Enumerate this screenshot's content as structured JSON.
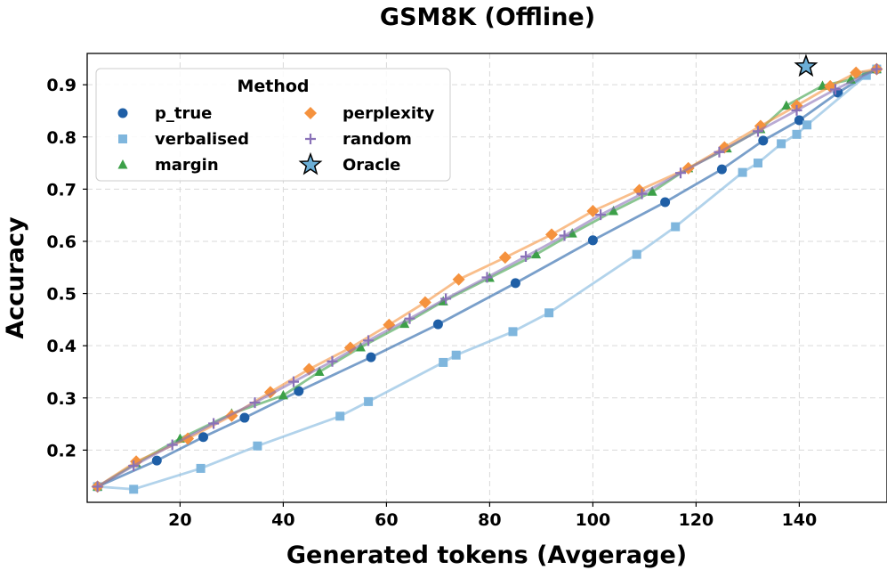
{
  "chart_data": {
    "type": "line",
    "title": "GSM8K (Offline)",
    "xlabel": "Generated tokens (Avgerage)",
    "ylabel": "Accuracy",
    "xlim": [
      2,
      157
    ],
    "ylim": [
      0.1,
      0.96
    ],
    "xticks": [
      20,
      40,
      60,
      80,
      100,
      120,
      140
    ],
    "yticks": [
      0.2,
      0.3,
      0.4,
      0.5,
      0.6,
      0.7,
      0.8,
      0.9
    ],
    "grid": true,
    "legend": {
      "title": "Method",
      "placement": "top-left",
      "columns": 2
    },
    "series": [
      {
        "name": "p_true",
        "color": "#1f5fa6",
        "marker": "circle",
        "x": [
          4,
          15.5,
          24.5,
          32.5,
          43,
          57,
          70,
          85,
          100,
          114,
          125,
          133,
          140,
          147.5,
          155
        ],
        "y": [
          0.13,
          0.18,
          0.225,
          0.262,
          0.313,
          0.378,
          0.441,
          0.52,
          0.602,
          0.675,
          0.738,
          0.793,
          0.832,
          0.885,
          0.93
        ]
      },
      {
        "name": "verbalised",
        "color": "#7fb6dd",
        "marker": "square",
        "x": [
          4,
          11,
          24,
          35,
          51,
          56.5,
          71,
          73.5,
          84.5,
          91.5,
          108.5,
          116,
          129,
          132,
          136.5,
          139.5,
          141.5,
          153,
          155
        ],
        "y": [
          0.13,
          0.125,
          0.165,
          0.208,
          0.265,
          0.293,
          0.368,
          0.382,
          0.427,
          0.463,
          0.575,
          0.628,
          0.732,
          0.75,
          0.787,
          0.805,
          0.823,
          0.918,
          0.93
        ]
      },
      {
        "name": "margin",
        "color": "#3ca048",
        "marker": "triangle",
        "x": [
          4,
          11.5,
          20,
          30,
          40,
          47,
          55,
          63.5,
          71,
          80,
          89,
          96,
          104,
          111.5,
          118.5,
          126,
          132.5,
          137.5,
          144.5,
          150,
          155
        ],
        "y": [
          0.13,
          0.175,
          0.222,
          0.27,
          0.305,
          0.35,
          0.397,
          0.442,
          0.485,
          0.53,
          0.575,
          0.615,
          0.658,
          0.695,
          0.74,
          0.778,
          0.815,
          0.86,
          0.898,
          0.91,
          0.93
        ]
      },
      {
        "name": "perplexity",
        "color": "#f5923e",
        "marker": "diamond",
        "x": [
          4,
          11.5,
          21.5,
          30,
          37.5,
          45,
          53,
          60.5,
          67.5,
          74,
          83,
          92,
          100,
          109,
          118.5,
          125.5,
          132.5,
          139.5,
          146,
          151,
          155
        ],
        "y": [
          0.13,
          0.178,
          0.222,
          0.266,
          0.311,
          0.355,
          0.396,
          0.44,
          0.483,
          0.527,
          0.569,
          0.613,
          0.658,
          0.698,
          0.74,
          0.78,
          0.821,
          0.86,
          0.897,
          0.923,
          0.93
        ]
      },
      {
        "name": "random",
        "color": "#8a72b8",
        "marker": "plus",
        "x": [
          4,
          11,
          18.5,
          26.5,
          34.5,
          42,
          49.5,
          56.5,
          64.5,
          71.5,
          79.5,
          87,
          94.5,
          101.5,
          109.5,
          117,
          124.5,
          132,
          139.5,
          147,
          155
        ],
        "y": [
          0.13,
          0.17,
          0.21,
          0.251,
          0.291,
          0.331,
          0.37,
          0.41,
          0.452,
          0.49,
          0.531,
          0.571,
          0.611,
          0.651,
          0.691,
          0.731,
          0.771,
          0.811,
          0.851,
          0.891,
          0.93
        ]
      }
    ],
    "oracle": {
      "name": "Oracle",
      "color": "#6baed6",
      "marker": "star",
      "x": 141.3,
      "y": 0.935
    }
  }
}
